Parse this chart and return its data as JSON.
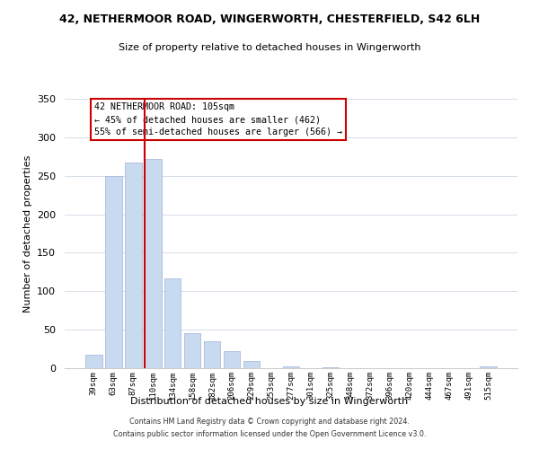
{
  "title": "42, NETHERMOOR ROAD, WINGERWORTH, CHESTERFIELD, S42 6LH",
  "subtitle": "Size of property relative to detached houses in Wingerworth",
  "xlabel": "Distribution of detached houses by size in Wingerworth",
  "ylabel": "Number of detached properties",
  "bar_labels": [
    "39sqm",
    "63sqm",
    "87sqm",
    "110sqm",
    "134sqm",
    "158sqm",
    "182sqm",
    "206sqm",
    "229sqm",
    "253sqm",
    "277sqm",
    "301sqm",
    "325sqm",
    "348sqm",
    "372sqm",
    "396sqm",
    "420sqm",
    "444sqm",
    "467sqm",
    "491sqm",
    "515sqm"
  ],
  "bar_values": [
    18,
    250,
    267,
    272,
    117,
    45,
    35,
    22,
    9,
    0,
    2,
    0,
    1,
    0,
    0,
    0,
    0,
    0,
    0,
    0,
    2
  ],
  "bar_color": "#c8daf0",
  "bar_edge_color": "#aabbdd",
  "vline_color": "#cc0000",
  "annotation_title": "42 NETHERMOOR ROAD: 105sqm",
  "annotation_line1": "← 45% of detached houses are smaller (462)",
  "annotation_line2": "55% of semi-detached houses are larger (566) →",
  "annotation_box_edge": "#cc0000",
  "ylim": [
    0,
    350
  ],
  "yticks": [
    0,
    50,
    100,
    150,
    200,
    250,
    300,
    350
  ],
  "footer1": "Contains HM Land Registry data © Crown copyright and database right 2024.",
  "footer2": "Contains public sector information licensed under the Open Government Licence v3.0.",
  "grid_color": "#d5dde8",
  "title_fontsize": 9,
  "subtitle_fontsize": 8,
  "ylabel_fontsize": 8,
  "xlabel_fontsize": 8
}
